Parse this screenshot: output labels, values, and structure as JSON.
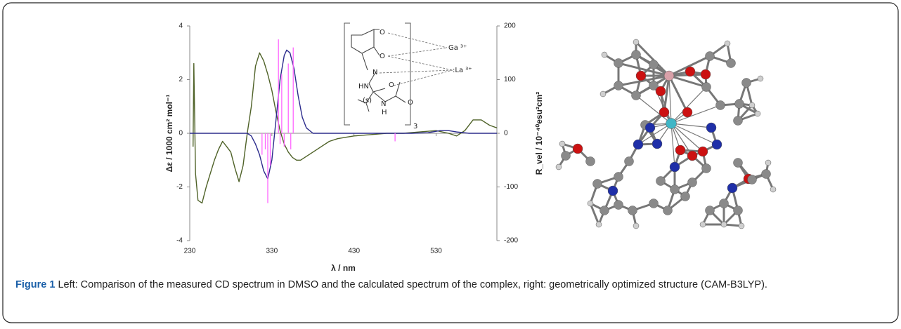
{
  "chart_data": {
    "type": "line",
    "xlabel": "λ / nm",
    "ylabel": "Δε / 1000 cm² mol⁻¹",
    "y2label": "R_vel / 10⁻⁴⁰esu²cm²",
    "xlim": [
      230,
      604
    ],
    "xticks": [
      230,
      330,
      430,
      530
    ],
    "ylim": [
      -4,
      4
    ],
    "yticks": [
      -4,
      -2,
      0,
      2,
      4
    ],
    "y2lim": [
      -200,
      200
    ],
    "y2ticks": [
      -200,
      -100,
      0,
      100,
      200
    ],
    "series": [
      {
        "color": "#4f6228",
        "x": [
          234,
          235,
          237,
          240,
          245,
          250,
          255,
          260,
          265,
          270,
          275,
          280,
          285,
          290,
          295,
          300,
          305,
          310,
          315,
          320,
          325,
          330,
          335,
          340,
          345,
          350,
          355,
          360,
          365,
          370,
          380,
          390,
          400,
          410,
          420,
          430,
          450,
          470,
          490,
          510,
          530,
          545,
          555,
          565,
          575,
          585,
          595,
          604
        ],
        "values": [
          -0.5,
          2.6,
          -1.5,
          -2.5,
          -2.6,
          -2.0,
          -1.5,
          -1.0,
          -0.6,
          -0.3,
          -0.5,
          -0.7,
          -1.3,
          -1.8,
          -1.2,
          0.0,
          1.0,
          2.5,
          3.0,
          2.7,
          2.2,
          1.6,
          0.8,
          0.1,
          -0.4,
          -0.7,
          -0.9,
          -1.0,
          -1.0,
          -0.9,
          -0.7,
          -0.5,
          -0.3,
          -0.2,
          -0.15,
          -0.1,
          -0.05,
          0.0,
          0.0,
          0.05,
          0.1,
          0.0,
          -0.1,
          0.1,
          0.5,
          0.5,
          0.3,
          0.2
        ]
      },
      {
        "color": "#2b2b8c",
        "x": [
          230,
          300,
          305,
          310,
          315,
          320,
          325,
          330,
          335,
          340,
          345,
          348,
          352,
          357,
          362,
          367,
          372,
          380,
          500,
          520,
          535,
          545,
          555,
          570,
          604
        ],
        "values": [
          0,
          0,
          -0.1,
          -0.4,
          -0.8,
          -1.4,
          -1.7,
          -1.0,
          0.5,
          2.0,
          2.9,
          3.1,
          3.0,
          2.4,
          1.4,
          0.6,
          0.2,
          0.0,
          0.0,
          0.02,
          0.1,
          0.1,
          0.05,
          0.0,
          0.0
        ]
      },
      {
        "color": "#ff66ff",
        "axis": "y2",
        "style": "stem",
        "x": [
          318,
          322,
          325,
          328,
          338,
          340,
          342,
          345,
          350,
          353,
          356,
          480
        ],
        "values": [
          -40,
          -30,
          -130,
          -60,
          175,
          -20,
          110,
          -25,
          130,
          -30,
          160,
          -15
        ]
      }
    ]
  },
  "inset_labels": [
    "O",
    "O",
    "Ga ³⁺",
    ":La ³⁺",
    "N",
    "HN",
    "O",
    "(s)",
    "N",
    "H",
    "O",
    "3"
  ],
  "caption": {
    "label": "Figure 1",
    "text": "Left: Comparison of the measured CD spectrum in DMSO and the calculated spectrum of the complex, right: geometrically optimized structure (CAM-B3LYP)."
  }
}
